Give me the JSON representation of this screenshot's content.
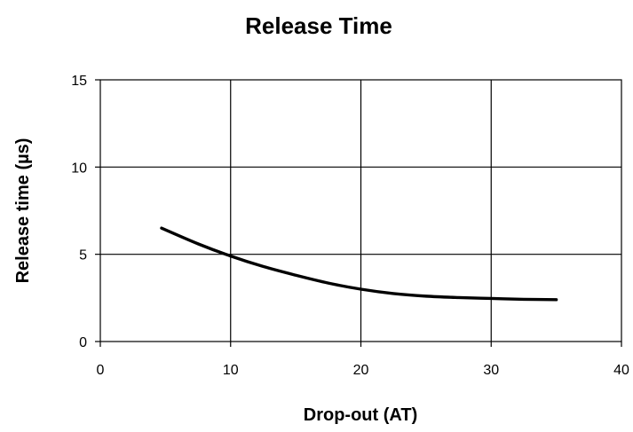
{
  "chart_data": {
    "type": "line",
    "title": "Release Time",
    "xlabel": "Drop-out (AT)",
    "ylabel": "Release time (µs)",
    "xlim": [
      0,
      40
    ],
    "ylim": [
      0,
      15
    ],
    "xticks": [
      0,
      10,
      20,
      30,
      40
    ],
    "yticks": [
      0,
      5,
      10,
      15
    ],
    "xtick_labels": [
      "0",
      "10",
      "20",
      "30",
      "40"
    ],
    "ytick_labels": [
      "0",
      "5",
      "10",
      "15"
    ],
    "grid": true,
    "legend": "none",
    "series": [
      {
        "color": "#000000",
        "x": [
          4.7,
          7.5,
          10,
          12.5,
          15,
          17.5,
          20,
          22.5,
          25,
          27.5,
          30,
          32.5,
          35
        ],
        "y": [
          6.5,
          5.6,
          4.9,
          4.3,
          3.8,
          3.35,
          3.0,
          2.75,
          2.6,
          2.52,
          2.47,
          2.42,
          2.4
        ]
      }
    ]
  }
}
